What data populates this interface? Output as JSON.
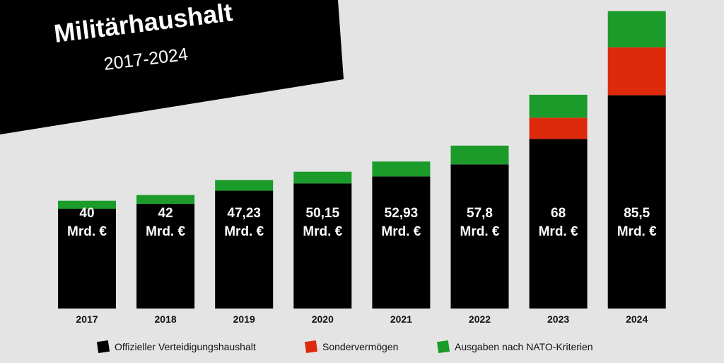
{
  "chart_data": {
    "type": "bar",
    "stacked": true,
    "title": "Militärhaushalt",
    "subtitle": "2017-2024",
    "categories": [
      "2017",
      "2018",
      "2019",
      "2020",
      "2021",
      "2022",
      "2023",
      "2024"
    ],
    "series": [
      {
        "name": "Offizieller Verteidigungshaushalt",
        "color": "#000000",
        "values": [
          40,
          42,
          47.23,
          50.15,
          52.93,
          57.8,
          68,
          85.5
        ],
        "labels": [
          "40",
          "42",
          "47,23",
          "50,15",
          "52,93",
          "57,8",
          "68",
          "85,5"
        ]
      },
      {
        "name": "Sondervermögen",
        "color": "#dd2a0d",
        "values": [
          0,
          0,
          0,
          0,
          0,
          0,
          8.5,
          19.2
        ]
      },
      {
        "name": "Ausgaben nach NATO-Kriterien",
        "color": "#1a9b2a",
        "values": [
          3.2,
          3.5,
          4.3,
          4.7,
          6.0,
          7.5,
          9.2,
          14.5
        ]
      }
    ],
    "value_unit": "Mrd. €",
    "legend_position": "bottom",
    "grid": false,
    "ylim": [
      0,
      120
    ]
  }
}
